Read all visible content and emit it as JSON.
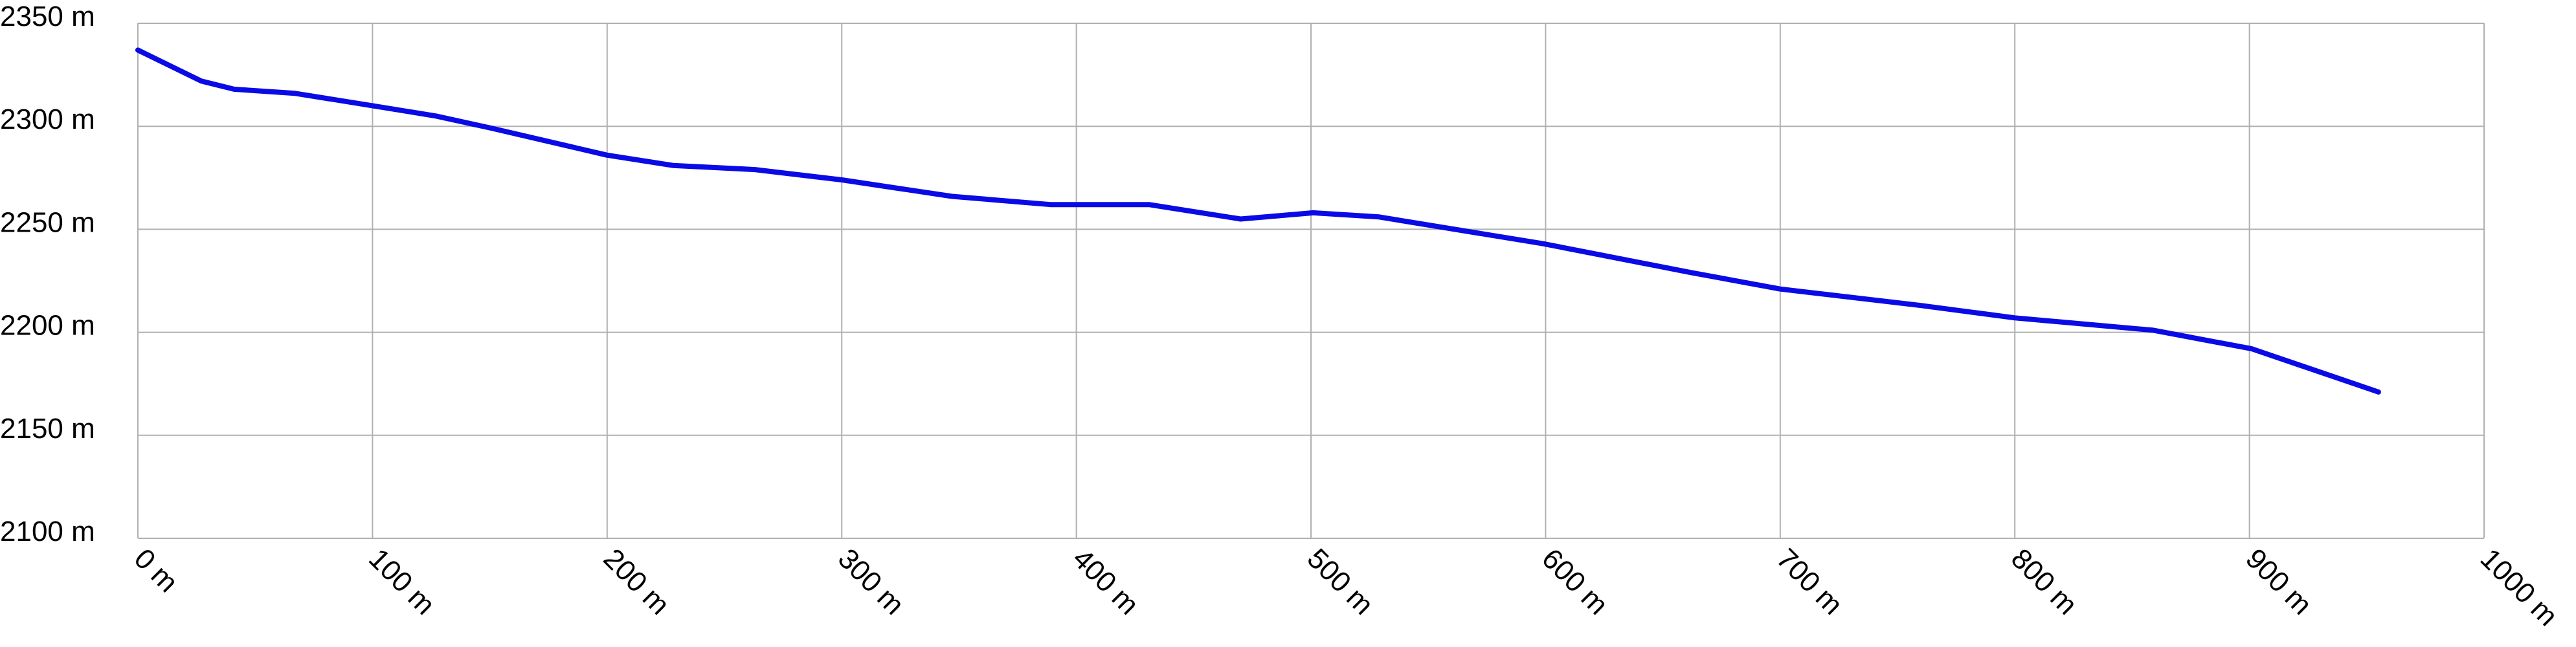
{
  "chart_data": {
    "type": "line",
    "x": [
      0,
      27,
      41,
      67,
      100,
      127,
      151,
      200,
      228,
      263,
      300,
      347,
      389,
      431,
      470,
      501,
      529,
      599,
      662,
      700,
      760,
      800,
      859,
      901,
      955
    ],
    "series": [
      {
        "color": "#0a0ae6",
        "values": [
          2337,
          2322,
          2318,
          2316,
          2310,
          2305,
          2299,
          2286,
          2281,
          2279,
          2274,
          2266,
          2262,
          2262,
          2255,
          2258,
          2256,
          2243,
          2229,
          2221,
          2213,
          2207,
          2201,
          2192,
          2171
        ]
      }
    ],
    "xlim": [
      0,
      1000
    ],
    "xticks": [
      {
        "value": 0,
        "label": "0 m"
      },
      {
        "value": 100,
        "label": "100 m"
      },
      {
        "value": 200,
        "label": "200 m"
      },
      {
        "value": 300,
        "label": "300 m"
      },
      {
        "value": 400,
        "label": "400 m"
      },
      {
        "value": 500,
        "label": "500 m"
      },
      {
        "value": 600,
        "label": "600 m"
      },
      {
        "value": 700,
        "label": "700 m"
      },
      {
        "value": 800,
        "label": "800 m"
      },
      {
        "value": 900,
        "label": "900 m"
      },
      {
        "value": 1000,
        "label": "1000 m"
      }
    ],
    "ylim": [
      2100,
      2350
    ],
    "yticks": [
      {
        "value": 2100,
        "label": "2100 m"
      },
      {
        "value": 2150,
        "label": "2150 m"
      },
      {
        "value": 2200,
        "label": "2200 m"
      },
      {
        "value": 2250,
        "label": "2250 m"
      },
      {
        "value": 2300,
        "label": "2300 m"
      },
      {
        "value": 2350,
        "label": "2350 m"
      }
    ],
    "grid": true
  }
}
